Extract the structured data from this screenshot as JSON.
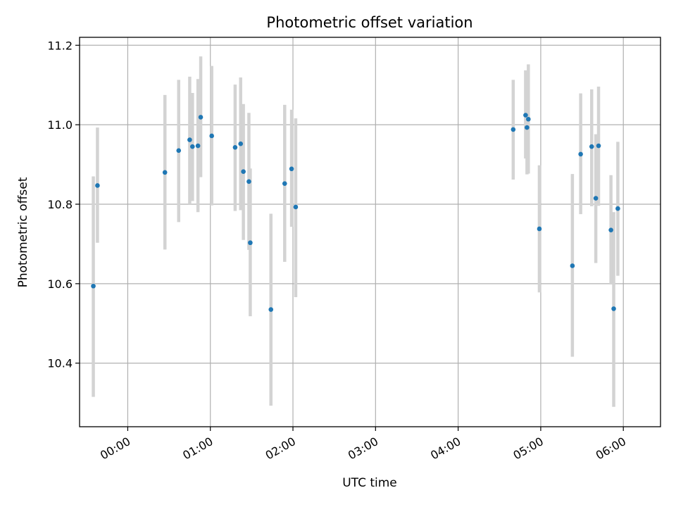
{
  "chart_data": {
    "type": "scatter",
    "title": "Photometric offset variation",
    "xlabel": "UTC time",
    "ylabel": "Photometric offset",
    "grid": true,
    "x_unit": "UTC time (hh:mm)",
    "xlim": [
      "23:25",
      "06:27"
    ],
    "ylim": [
      10.24,
      11.22
    ],
    "x_ticks": [
      "00:00",
      "01:00",
      "02:00",
      "03:00",
      "04:00",
      "05:00",
      "06:00"
    ],
    "y_ticks": [
      "10.4",
      "10.6",
      "10.8",
      "11.0",
      "11.2"
    ],
    "colors": {
      "points": "#1f77b4",
      "errorbars": "#d3d3d3",
      "grid": "#b0b0b0"
    },
    "series": [
      {
        "x": [
          "23:35",
          "23:38",
          "00:27",
          "00:37",
          "00:45",
          "00:47",
          "00:51",
          "00:53",
          "01:01",
          "01:18",
          "01:22",
          "01:24",
          "01:28",
          "01:29",
          "01:44",
          "01:54",
          "01:59",
          "02:02",
          "04:40",
          "04:49",
          "04:50",
          "04:51",
          "04:59",
          "05:23",
          "05:29",
          "05:37",
          "05:40",
          "05:42",
          "05:51",
          "05:53",
          "05:56"
        ],
        "y": [
          10.594,
          10.847,
          10.88,
          10.935,
          10.962,
          10.945,
          10.947,
          11.019,
          10.972,
          10.943,
          10.952,
          10.882,
          10.857,
          10.703,
          10.535,
          10.852,
          10.889,
          10.793,
          10.988,
          11.024,
          10.993,
          11.014,
          10.738,
          10.645,
          10.926,
          10.945,
          10.815,
          10.947,
          10.735,
          10.537,
          10.789
        ],
        "yerr_low": [
          10.315,
          10.703,
          10.686,
          10.755,
          10.8,
          10.808,
          10.78,
          10.868,
          10.797,
          10.783,
          10.785,
          10.71,
          10.685,
          10.518,
          10.293,
          10.655,
          10.743,
          10.566,
          10.862,
          10.915,
          10.875,
          10.877,
          10.578,
          10.416,
          10.775,
          10.795,
          10.652,
          10.796,
          10.598,
          10.29,
          10.62
        ],
        "yerr_high": [
          10.87,
          10.993,
          11.075,
          11.113,
          11.121,
          11.08,
          11.115,
          11.172,
          11.148,
          11.101,
          11.119,
          11.052,
          11.03,
          10.89,
          10.776,
          11.05,
          11.038,
          11.016,
          11.113,
          11.137,
          11.115,
          11.152,
          10.898,
          10.876,
          11.079,
          11.089,
          10.976,
          11.096,
          10.873,
          10.78,
          10.957
        ]
      }
    ]
  }
}
